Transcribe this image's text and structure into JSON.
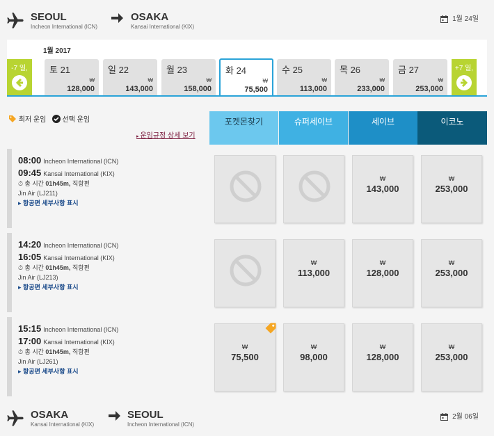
{
  "outbound": {
    "from_code": "SEOUL",
    "from_name": "Incheon International (ICN)",
    "to_code": "OSAKA",
    "to_name": "Kansai International (KIX)",
    "date": "1월 24일"
  },
  "calendar": {
    "month": "1월 2017",
    "prev_label": "-7 일,",
    "next_label": "+7 일,",
    "currency": "₩",
    "days": [
      {
        "day": "토 21",
        "price": "128,000"
      },
      {
        "day": "일 22",
        "price": "143,000"
      },
      {
        "day": "월 23",
        "price": "158,000"
      },
      {
        "day": "화 24",
        "price": "75,500",
        "selected": true
      },
      {
        "day": "수 25",
        "price": "113,000"
      },
      {
        "day": "목 26",
        "price": "233,000"
      },
      {
        "day": "금 27",
        "price": "253,000"
      }
    ]
  },
  "legend": {
    "lowest": "최저 운임",
    "selected": "선택 운임",
    "rules_link": "운임규정 상세 보기"
  },
  "fare_types": [
    {
      "label": "포켓몬찾기",
      "color": "#6cc8ee"
    },
    {
      "label": "슈퍼세이브",
      "color": "#3fb1e3"
    },
    {
      "label": "세이브",
      "color": "#1e8fc7"
    },
    {
      "label": "이코노",
      "color": "#0b5a7a"
    }
  ],
  "flights": [
    {
      "dep_time": "08:00",
      "dep_airport": "Incheon International (ICN)",
      "arr_time": "09:45",
      "arr_airport": "Kansai International (KIX)",
      "duration_label": "총 시간",
      "duration": "01h45m,",
      "direct": "직항편",
      "carrier": "Jin Air (LJ211)",
      "details": "항공편 세부사항 표시",
      "fares": [
        null,
        null,
        "143,000",
        "253,000"
      ]
    },
    {
      "dep_time": "14:20",
      "dep_airport": "Incheon International (ICN)",
      "arr_time": "16:05",
      "arr_airport": "Kansai International (KIX)",
      "duration_label": "총 시간",
      "duration": "01h45m,",
      "direct": "직항편",
      "carrier": "Jin Air (LJ213)",
      "details": "항공편 세부사항 표시",
      "fares": [
        null,
        "113,000",
        "128,000",
        "253,000"
      ]
    },
    {
      "dep_time": "15:15",
      "dep_airport": "Incheon International (ICN)",
      "arr_time": "17:00",
      "arr_airport": "Kansai International (KIX)",
      "duration_label": "총 시간",
      "duration": "01h45m,",
      "direct": "직항편",
      "carrier": "Jin Air (LJ261)",
      "details": "항공편 세부사항 표시",
      "fares": [
        "75,500",
        "98,000",
        "128,000",
        "253,000"
      ]
    }
  ],
  "return": {
    "from_code": "OSAKA",
    "from_name": "Kansai International (KIX)",
    "to_code": "SEOUL",
    "to_name": "Incheon International (ICN)",
    "date": "2월 06일"
  },
  "icons": [
    "plane-icon",
    "arrow-right-icon",
    "calendar-icon",
    "arrow-left-circle-icon",
    "arrow-right-circle-icon",
    "lowest-fare-tag-icon",
    "check-circle-icon",
    "unavailable-icon"
  ],
  "colors": {
    "accent_blue": "#2aa3d8",
    "nav_green": "#b8d432",
    "tag_orange": "#f5a623"
  }
}
